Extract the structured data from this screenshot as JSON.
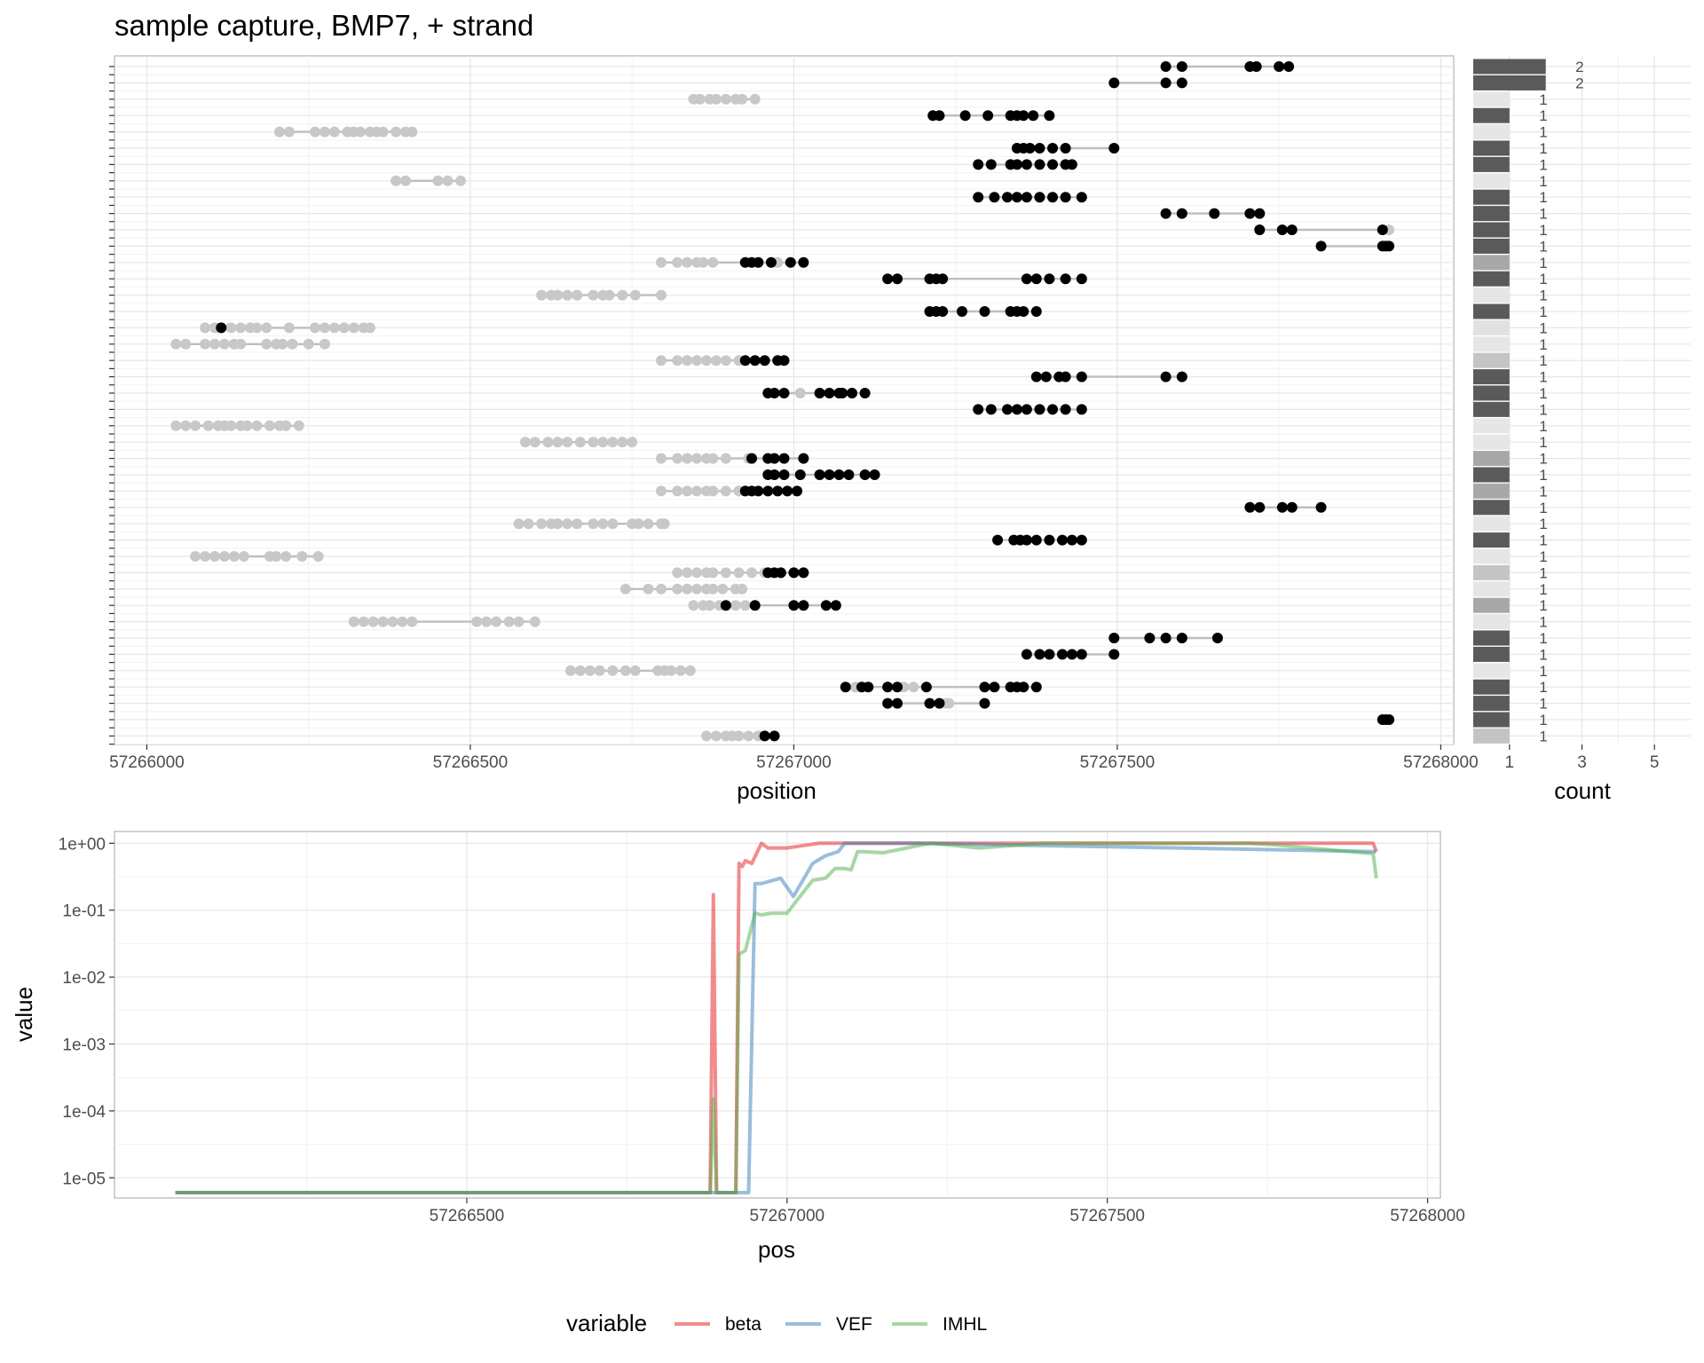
{
  "title": "sample capture, BMP7, + strand",
  "chart_data": [
    {
      "type": "scatter",
      "name": "reads",
      "xlabel": "position",
      "ylabel": "",
      "xlim": [
        57265950,
        57268020
      ],
      "xticks": [
        57266000,
        57266500,
        57267000,
        57267500,
        57268000
      ],
      "xtick_labels": [
        "57266000",
        "57266500",
        "57267000",
        "57267500",
        "57268000"
      ],
      "colors": {
        "methylated": "#000000",
        "unmethylated": "#c8c8c8",
        "segment": "#bebebe"
      },
      "rows": [
        {
          "m": [
            57267575,
            57267600,
            57267705,
            57267715,
            57267750,
            57267765
          ],
          "u": []
        },
        {
          "m": [
            57267495,
            57267575,
            57267600
          ],
          "u": []
        },
        {
          "m": [],
          "u": [
            57266845,
            57266855,
            57266870,
            57266880,
            57266895,
            57266910,
            57266920,
            57266940
          ]
        },
        {
          "m": [
            57267215,
            57267225,
            57267265,
            57267300,
            57267335,
            57267345,
            57267355,
            57267370,
            57267395
          ],
          "u": []
        },
        {
          "m": [],
          "u": [
            57266205,
            57266220,
            57266260,
            57266275,
            57266290,
            57266310,
            57266320,
            57266330,
            57266345,
            57266355,
            57266365,
            57266385,
            57266400,
            57266410
          ]
        },
        {
          "m": [
            57267345,
            57267355,
            57267365,
            57267380,
            57267400,
            57267420,
            57267495
          ],
          "u": []
        },
        {
          "m": [
            57267285,
            57267305,
            57267335,
            57267345,
            57267360,
            57267380,
            57267400,
            57267420,
            57267430
          ],
          "u": []
        },
        {
          "m": [],
          "u": [
            57266385,
            57266400,
            57266450,
            57266465,
            57266485
          ]
        },
        {
          "m": [
            57267285,
            57267310,
            57267330,
            57267345,
            57267360,
            57267380,
            57267400,
            57267420,
            57267445
          ],
          "u": []
        },
        {
          "m": [
            57267575,
            57267600,
            57267650,
            57267705,
            57267720
          ],
          "u": []
        },
        {
          "m": [
            57267720,
            57267755,
            57267770,
            57267910
          ],
          "u": [
            57267920
          ]
        },
        {
          "m": [
            57267815,
            57267910,
            57267915,
            57267920
          ],
          "u": []
        },
        {
          "m": [
            57266925,
            57266935,
            57266945,
            57266965,
            57266995,
            57267015
          ],
          "u": [
            57266795,
            57266820,
            57266835,
            57266850,
            57266860,
            57266875,
            57266975
          ]
        },
        {
          "m": [
            57267145,
            57267160,
            57267210,
            57267220,
            57267230,
            57267360,
            57267375,
            57267395,
            57267420,
            57267445
          ],
          "u": []
        },
        {
          "m": [],
          "u": [
            57266610,
            57266625,
            57266635,
            57266650,
            57266665,
            57266690,
            57266705,
            57266715,
            57266735,
            57266755,
            57266795
          ]
        },
        {
          "m": [
            57267210,
            57267220,
            57267230,
            57267260,
            57267295,
            57267335,
            57267345,
            57267355,
            57267375
          ],
          "u": []
        },
        {
          "m": [
            57266115
          ],
          "u": [
            57266090,
            57266105,
            57266130,
            57266145,
            57266160,
            57266170,
            57266185,
            57266220,
            57266260,
            57266275,
            57266290,
            57266305,
            57266320,
            57266335,
            57266345
          ]
        },
        {
          "m": [],
          "u": [
            57266045,
            57266060,
            57266090,
            57266105,
            57266120,
            57266135,
            57266145,
            57266185,
            57266200,
            57266210,
            57266225,
            57266250,
            57266275
          ]
        },
        {
          "m": [
            57266925,
            57266940,
            57266955,
            57266975,
            57266985
          ],
          "u": [
            57266795,
            57266820,
            57266835,
            57266850,
            57266865,
            57266880,
            57266895,
            57266915
          ]
        },
        {
          "m": [
            57267375,
            57267390,
            57267410,
            57267420,
            57267445,
            57267575,
            57267600
          ],
          "u": []
        },
        {
          "m": [
            57266960,
            57266970,
            57266985,
            57267040,
            57267055,
            57267070,
            57267075,
            57267090,
            57267110
          ],
          "u": [
            57267010
          ]
        },
        {
          "m": [
            57267285,
            57267305,
            57267330,
            57267345,
            57267360,
            57267380,
            57267400,
            57267420,
            57267445
          ],
          "u": []
        },
        {
          "m": [],
          "u": [
            57266045,
            57266060,
            57266075,
            57266095,
            57266110,
            57266120,
            57266130,
            57266145,
            57266155,
            57266170,
            57266190,
            57266205,
            57266215,
            57266235
          ]
        },
        {
          "m": [],
          "u": [
            57266585,
            57266600,
            57266620,
            57266635,
            57266650,
            57266670,
            57266690,
            57266705,
            57266720,
            57266735,
            57266750
          ]
        },
        {
          "m": [
            57266935,
            57266960,
            57266970,
            57266985,
            57267015
          ],
          "u": [
            57266795,
            57266820,
            57266835,
            57266850,
            57266865,
            57266875,
            57266895,
            57266930
          ]
        },
        {
          "m": [
            57266960,
            57266970,
            57266985,
            57267010,
            57267040,
            57267055,
            57267070,
            57267085,
            57267110,
            57267125
          ],
          "u": []
        },
        {
          "m": [
            57266925,
            57266935,
            57266945,
            57266960,
            57266975,
            57266990,
            57267005
          ],
          "u": [
            57266795,
            57266820,
            57266835,
            57266850,
            57266865,
            57266875,
            57266895,
            57266915
          ]
        },
        {
          "m": [
            57267705,
            57267720,
            57267755,
            57267770,
            57267815
          ],
          "u": []
        },
        {
          "m": [],
          "u": [
            57266575,
            57266590,
            57266610,
            57266625,
            57266635,
            57266650,
            57266665,
            57266690,
            57266705,
            57266720,
            57266750,
            57266760,
            57266775,
            57266795,
            57266800
          ]
        },
        {
          "m": [
            57267315,
            57267340,
            57267350,
            57267360,
            57267375,
            57267395,
            57267415,
            57267430,
            57267445
          ],
          "u": []
        },
        {
          "m": [],
          "u": [
            57266075,
            57266090,
            57266105,
            57266120,
            57266135,
            57266150,
            57266190,
            57266200,
            57266215,
            57266240,
            57266265
          ]
        },
        {
          "m": [
            57266960,
            57266970,
            57266980,
            57267000,
            57267015
          ],
          "u": [
            57266820,
            57266835,
            57266850,
            57266865,
            57266875,
            57266895,
            57266915,
            57266935,
            57266955
          ]
        },
        {
          "m": [],
          "u": [
            57266740,
            57266775,
            57266795,
            57266820,
            57266835,
            57266850,
            57266865,
            57266875,
            57266890,
            57266910,
            57266920
          ]
        },
        {
          "m": [
            57266895,
            57266940,
            57267000,
            57267015,
            57267050,
            57267065
          ],
          "u": [
            57266845,
            57266860,
            57266870,
            57266885,
            57266910,
            57266925
          ]
        },
        {
          "m": [],
          "u": [
            57266320,
            57266335,
            57266350,
            57266365,
            57266380,
            57266395,
            57266410,
            57266510,
            57266525,
            57266540,
            57266560,
            57266575,
            57266600
          ]
        },
        {
          "m": [
            57267495,
            57267550,
            57267575,
            57267600,
            57267655
          ],
          "u": []
        },
        {
          "m": [
            57267360,
            57267380,
            57267395,
            57267415,
            57267430,
            57267445,
            57267495
          ],
          "u": []
        },
        {
          "m": [],
          "u": [
            57266655,
            57266670,
            57266685,
            57266700,
            57266720,
            57266740,
            57266755,
            57266790,
            57266800,
            57266810,
            57266825,
            57266840
          ]
        },
        {
          "m": [
            57267080,
            57267105,
            57267115,
            57267145,
            57267160,
            57267205,
            57267295,
            57267310,
            57267335,
            57267345,
            57267355,
            57267375
          ],
          "u": [
            57267095,
            57267170,
            57267185
          ]
        },
        {
          "m": [
            57267145,
            57267160,
            57267210,
            57267225,
            57267295
          ],
          "u": [
            57267235,
            57267240
          ]
        },
        {
          "m": [
            57267910,
            57267915,
            57267920
          ],
          "u": []
        },
        {
          "m": [
            57266955,
            57266970
          ],
          "u": [
            57266865,
            57266880,
            57266895,
            57266905,
            57266915,
            57266930,
            57266945
          ]
        }
      ]
    },
    {
      "type": "bar",
      "name": "counts",
      "xlabel": "count",
      "xlim": [
        0,
        6
      ],
      "xticks": [
        1,
        3,
        5
      ],
      "xtick_labels": [
        "1",
        "3",
        "5"
      ],
      "values": [
        2,
        2,
        1,
        1,
        1,
        1,
        1,
        1,
        1,
        1,
        1,
        1,
        1,
        1,
        1,
        1,
        1,
        1,
        1,
        1,
        1,
        1,
        1,
        1,
        1,
        1,
        1,
        1,
        1,
        1,
        1,
        1,
        1,
        1,
        1,
        1,
        1,
        1,
        1,
        1,
        1,
        1
      ],
      "labels": [
        "2",
        "2",
        "1",
        "1",
        "1",
        "1",
        "1",
        "1",
        "1",
        "1",
        "1",
        "1",
        "1",
        "1",
        "1",
        "1",
        "1",
        "1",
        "1",
        "1",
        "1",
        "1",
        "1",
        "1",
        "1",
        "1",
        "1",
        "1",
        "1",
        "1",
        "1",
        "1",
        "1",
        "1",
        "1",
        "1",
        "1",
        "1",
        "1",
        "1",
        "1",
        "1"
      ],
      "fills": [
        "#5a5a5a",
        "#5a5a5a",
        "#e6e6e6",
        "#5a5a5a",
        "#e6e6e6",
        "#5a5a5a",
        "#5a5a5a",
        "#e6e6e6",
        "#5a5a5a",
        "#5a5a5a",
        "#5a5a5a",
        "#5a5a5a",
        "#a8a8a8",
        "#5a5a5a",
        "#e6e6e6",
        "#5a5a5a",
        "#e1e1e1",
        "#e6e6e6",
        "#c4c4c4",
        "#5a5a5a",
        "#5a5a5a",
        "#5a5a5a",
        "#e6e6e6",
        "#e6e6e6",
        "#a8a8a8",
        "#5a5a5a",
        "#a8a8a8",
        "#5a5a5a",
        "#e6e6e6",
        "#5a5a5a",
        "#e6e6e6",
        "#c4c4c4",
        "#e6e6e6",
        "#a8a8a8",
        "#e6e6e6",
        "#5a5a5a",
        "#5a5a5a",
        "#e6e6e6",
        "#5a5a5a",
        "#5a5a5a",
        "#5a5a5a",
        "#c4c4c4"
      ]
    },
    {
      "type": "line",
      "name": "metrics",
      "xlabel": "pos",
      "ylabel": "value",
      "yscale": "log",
      "xlim": [
        57265950,
        57268020
      ],
      "ylim": [
        5e-06,
        1.5
      ],
      "xticks": [
        57266500,
        57267000,
        57267500,
        57268000
      ],
      "xtick_labels": [
        "57266500",
        "57267000",
        "57267500",
        "57268000"
      ],
      "yticks": [
        1e-05,
        0.0001,
        0.001,
        0.01,
        0.1,
        1
      ],
      "ytick_labels": [
        "1e-05",
        "1e-04",
        "1e-03",
        "1e-02",
        "1e-01",
        "1e+00"
      ],
      "legend_title": "variable",
      "legend_position": "bottom",
      "series": [
        {
          "name": "beta",
          "color": "#e41a1c",
          "x": [
            57266045,
            57266880,
            57266885,
            57266890,
            57266895,
            57266920,
            57266925,
            57266930,
            57266935,
            57266945,
            57266960,
            57266970,
            57267000,
            57267050,
            57267100,
            57267915,
            57267920
          ],
          "y": [
            6e-06,
            6e-06,
            0.17,
            6e-06,
            6e-06,
            6e-06,
            0.5,
            0.45,
            0.55,
            0.5,
            1,
            0.85,
            0.85,
            1,
            1,
            1,
            0.75
          ]
        },
        {
          "name": "VEF",
          "color": "#377eb8",
          "x": [
            57266045,
            57266940,
            57266950,
            57266960,
            57266990,
            57267010,
            57267040,
            57267060,
            57267080,
            57267090,
            57267110,
            57267200,
            57267920
          ],
          "y": [
            6e-06,
            6e-06,
            0.25,
            0.25,
            0.3,
            0.16,
            0.5,
            0.65,
            0.75,
            1,
            1,
            1,
            0.75
          ]
        },
        {
          "name": "IMHL",
          "color": "#4daf4a",
          "x": [
            57266045,
            57266880,
            57266885,
            57266890,
            57266920,
            57266925,
            57266935,
            57266950,
            57266960,
            57266975,
            57267000,
            57267010,
            57267040,
            57267060,
            57267075,
            57267090,
            57267100,
            57267110,
            57267120,
            57267150,
            57267200,
            57267225,
            57267300,
            57267400,
            57267720,
            57267760,
            57267915,
            57267920
          ],
          "y": [
            6e-06,
            6e-06,
            0.00015,
            6e-06,
            6e-06,
            0.022,
            0.025,
            0.09,
            0.085,
            0.09,
            0.09,
            0.12,
            0.28,
            0.3,
            0.42,
            0.42,
            0.4,
            0.75,
            0.75,
            0.72,
            0.9,
            1,
            0.85,
            1,
            1,
            0.95,
            0.7,
            0.3
          ]
        }
      ]
    }
  ]
}
